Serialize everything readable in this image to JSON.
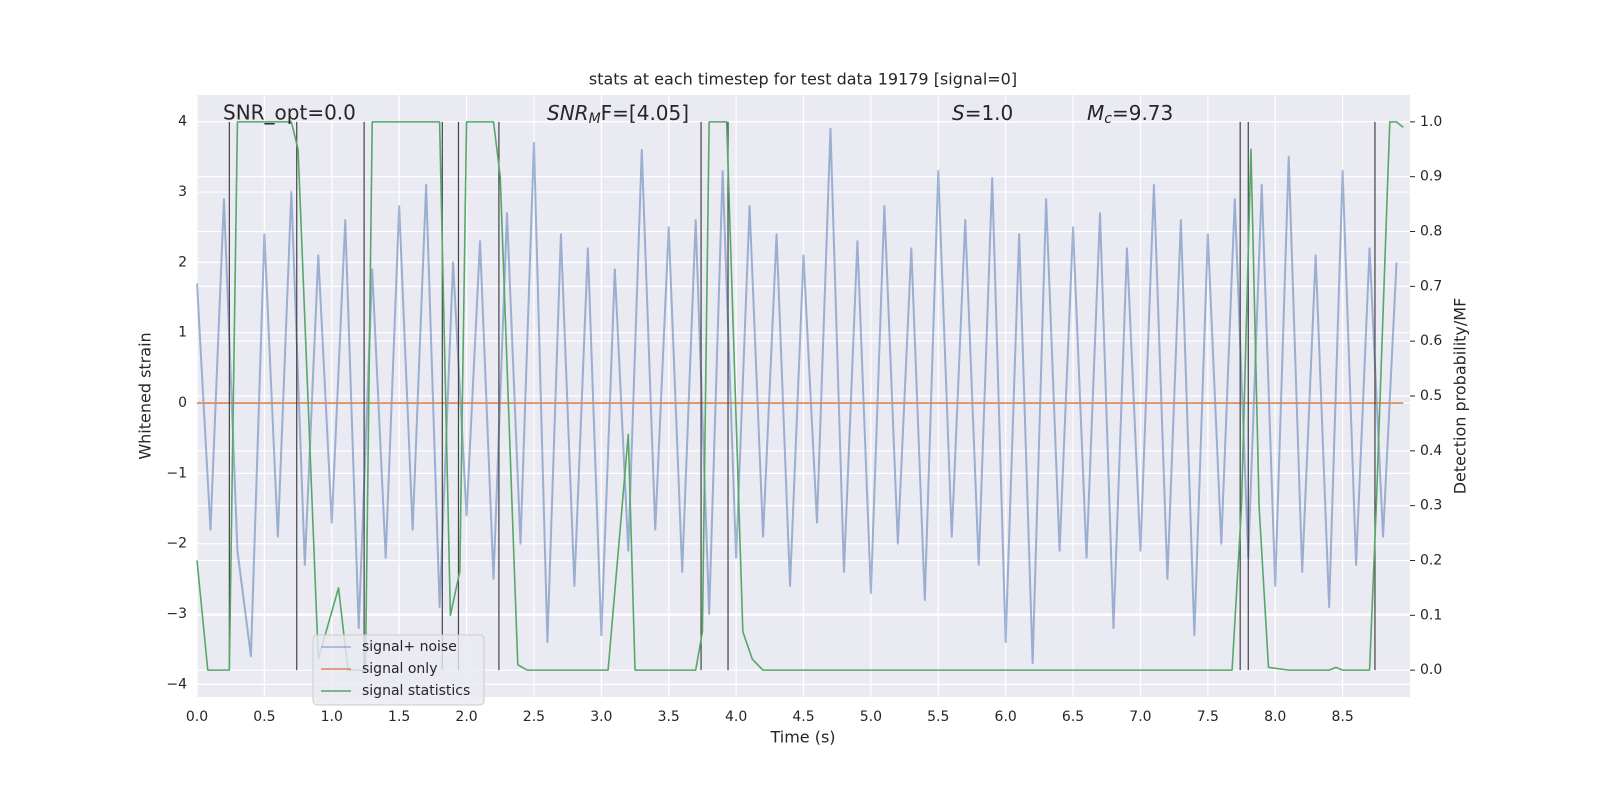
{
  "chart_data": {
    "type": "line",
    "title": "stats at each timestep for test data 19179 [signal=0]",
    "x_label": "Time (s)",
    "y_label": "Whitened strain",
    "y2_label": "Detection probability/MF",
    "annotations": [
      {
        "text": "SNR_opt=0.0"
      },
      {
        "main": "SNR",
        "sub": "M",
        "rest": "F=[4.05]"
      },
      {
        "main": "S",
        "rest": "=1.0"
      },
      {
        "main": "M",
        "sub": "c",
        "rest": "=9.73"
      }
    ],
    "xlim": [
      0,
      9.0
    ],
    "xticks": [
      {
        "value": 0,
        "label": "0.0"
      },
      {
        "value": 0.5,
        "label": "0.5"
      },
      {
        "value": 1,
        "label": "1.0"
      },
      {
        "value": 1.5,
        "label": "1.5"
      },
      {
        "value": 2,
        "label": "2.0"
      },
      {
        "value": 2.5,
        "label": "2.5"
      },
      {
        "value": 3,
        "label": "3.0"
      },
      {
        "value": 3.5,
        "label": "3.5"
      },
      {
        "value": 4,
        "label": "4.0"
      },
      {
        "value": 4.5,
        "label": "4.5"
      },
      {
        "value": 5,
        "label": "5.0"
      },
      {
        "value": 5.5,
        "label": "5.5"
      },
      {
        "value": 6,
        "label": "6.0"
      },
      {
        "value": 6.5,
        "label": "6.5"
      },
      {
        "value": 7,
        "label": "7.0"
      },
      {
        "value": 7.5,
        "label": "7.5"
      },
      {
        "value": 8,
        "label": "8.0"
      },
      {
        "value": 8.5,
        "label": "8.5"
      }
    ],
    "ylim": [
      -4.18,
      4.38
    ],
    "yticks": [
      {
        "value": -4,
        "label": "−4"
      },
      {
        "value": -3,
        "label": "−3"
      },
      {
        "value": -2,
        "label": "−2"
      },
      {
        "value": -1,
        "label": "−1"
      },
      0,
      1,
      2,
      3,
      4
    ],
    "y2lim": [
      -0.049,
      1.049
    ],
    "y2ticks": [
      {
        "value": 0,
        "label": "0.0"
      },
      {
        "value": 0.1,
        "label": "0.1"
      },
      {
        "value": 0.2,
        "label": "0.2"
      },
      {
        "value": 0.3,
        "label": "0.3"
      },
      {
        "value": 0.4,
        "label": "0.4"
      },
      {
        "value": 0.5,
        "label": "0.5"
      },
      {
        "value": 0.6,
        "label": "0.6"
      },
      {
        "value": 0.7,
        "label": "0.7"
      },
      {
        "value": 0.8,
        "label": "0.8"
      },
      {
        "value": 0.9,
        "label": "0.9"
      },
      {
        "value": 1,
        "label": "1.0"
      }
    ],
    "grid": true,
    "legend": "lower left",
    "series": [
      {
        "name": "signal+ noise",
        "color": "#4c72b0",
        "x": [
          0.0,
          0.1,
          0.2,
          0.3,
          0.4,
          0.5,
          0.6,
          0.7,
          0.8,
          0.9,
          1.0,
          1.1,
          1.2,
          1.3,
          1.4,
          1.5,
          1.6,
          1.7,
          1.8,
          1.9,
          2.0,
          2.1,
          2.2,
          2.3,
          2.4,
          2.5,
          2.6,
          2.7,
          2.8,
          2.9,
          3.0,
          3.1,
          3.2,
          3.3,
          3.4,
          3.5,
          3.6,
          3.7,
          3.8,
          3.9,
          4.0,
          4.1,
          4.2,
          4.3,
          4.4,
          4.5,
          4.6,
          4.7,
          4.8,
          4.9,
          5.0,
          5.1,
          5.2,
          5.3,
          5.4,
          5.5,
          5.6,
          5.7,
          5.8,
          5.9,
          6.0,
          6.1,
          6.2,
          6.3,
          6.4,
          6.5,
          6.6,
          6.7,
          6.8,
          6.9,
          7.0,
          7.1,
          7.2,
          7.3,
          7.4,
          7.5,
          7.6,
          7.7,
          7.8,
          7.9,
          8.0,
          8.1,
          8.2,
          8.3,
          8.4,
          8.5,
          8.6,
          8.7,
          8.8,
          8.9
        ],
        "values": [
          1.7,
          -1.8,
          2.9,
          -2.1,
          -3.6,
          2.4,
          -1.9,
          3.0,
          -2.3,
          2.1,
          -1.7,
          2.6,
          -3.2,
          1.9,
          -2.2,
          2.8,
          -1.8,
          3.1,
          -2.9,
          2.0,
          -1.6,
          2.3,
          -2.5,
          2.7,
          -2.0,
          3.7,
          -3.4,
          2.4,
          -2.6,
          2.2,
          -3.3,
          1.9,
          -2.1,
          3.6,
          -1.8,
          2.5,
          -2.4,
          2.6,
          -3.0,
          3.3,
          -2.2,
          2.8,
          -1.9,
          2.4,
          -2.6,
          2.1,
          -1.7,
          3.9,
          -2.4,
          2.3,
          -2.7,
          2.8,
          -2.0,
          2.2,
          -2.8,
          3.3,
          -1.9,
          2.6,
          -2.3,
          3.2,
          -3.4,
          2.4,
          -3.7,
          2.9,
          -2.1,
          2.5,
          -2.2,
          2.7,
          -3.2,
          2.2,
          -2.1,
          3.1,
          -2.5,
          2.6,
          -3.3,
          2.4,
          -2.0,
          2.9,
          -2.2,
          3.1,
          -2.6,
          3.5,
          -2.4,
          2.1,
          -2.9,
          3.3,
          -2.3,
          2.2,
          -1.9,
          2.0
        ]
      },
      {
        "name": "signal only",
        "color": "#dd8452",
        "x": [
          0,
          8.95
        ],
        "values": [
          0,
          0
        ]
      },
      {
        "name": "signal statistics",
        "color": "#55a868",
        "axis": "y2",
        "x": [
          0,
          0.08,
          0.24,
          0.3,
          0.7,
          0.75,
          0.9,
          1.05,
          1.12,
          1.25,
          1.3,
          1.8,
          1.88,
          1.95,
          2.0,
          2.2,
          2.25,
          2.38,
          2.45,
          3.05,
          3.2,
          3.25,
          3.7,
          3.75,
          3.8,
          3.93,
          4.05,
          4.12,
          4.2,
          7.68,
          7.75,
          7.82,
          7.88,
          7.95,
          8.1,
          8.4,
          8.45,
          8.5,
          8.7,
          8.75,
          8.85,
          8.9,
          8.95
        ],
        "values": [
          0.2,
          0.0,
          0.0,
          1.0,
          1.0,
          0.95,
          0.02,
          0.15,
          0.0,
          0.0,
          1.0,
          1.0,
          0.1,
          0.18,
          1.0,
          1.0,
          0.9,
          0.01,
          0.0,
          0.0,
          0.43,
          0.0,
          0.0,
          0.07,
          1.0,
          1.0,
          0.07,
          0.02,
          0.0,
          0.0,
          0.3,
          0.95,
          0.3,
          0.005,
          0.0,
          0.0,
          0.005,
          0.0,
          0.0,
          0.3,
          1.0,
          1.0,
          0.99
        ]
      }
    ],
    "vlines": [
      0.24,
      0.74,
      1.24,
      1.82,
      1.94,
      2.24,
      3.74,
      3.94,
      7.74,
      7.8,
      8.74
    ],
    "vline_y2": [
      0,
      1
    ],
    "vline_color": "#444444"
  }
}
